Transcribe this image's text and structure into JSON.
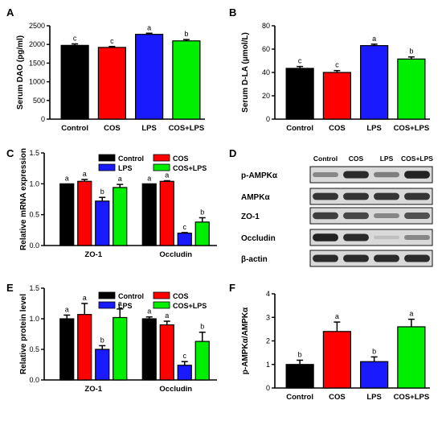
{
  "panels": {
    "A": "A",
    "B": "B",
    "C": "C",
    "D": "D",
    "E": "E",
    "F": "F"
  },
  "colors": {
    "Control": "#000000",
    "COS": "#ff0000",
    "LPS": "#1a1aff",
    "COS+LPS": "#00ee00"
  },
  "chart_data": [
    {
      "panel": "A",
      "type": "bar",
      "ylabel": "Serum DAO (pg/ml)",
      "ylim": [
        0,
        2500
      ],
      "yticks": [
        0,
        500,
        1000,
        1500,
        2000,
        2500
      ],
      "categories": [
        "Control",
        "COS",
        "LPS",
        "COS+LPS"
      ],
      "values": [
        1975,
        1920,
        2270,
        2095
      ],
      "errors": [
        40,
        25,
        30,
        35
      ],
      "letters": [
        "c",
        "c",
        "a",
        "b"
      ]
    },
    {
      "panel": "B",
      "type": "bar",
      "ylabel": "Serum D-LA (μmol/L)",
      "ylim": [
        0,
        80
      ],
      "yticks": [
        0,
        20,
        40,
        60,
        80
      ],
      "categories": [
        "Control",
        "COS",
        "LPS",
        "COS+LPS"
      ],
      "values": [
        43.5,
        40,
        63,
        51.5
      ],
      "errors": [
        1.6,
        1.6,
        1.2,
        1.8
      ],
      "letters": [
        "c",
        "c",
        "a",
        "b"
      ]
    },
    {
      "panel": "C",
      "type": "bar",
      "ylabel": "Relative mRNA expression",
      "ylim": [
        0,
        1.5
      ],
      "yticks": [
        0.0,
        0.5,
        1.0,
        1.5
      ],
      "categories": [
        "ZO-1",
        "Occludin"
      ],
      "series": [
        {
          "name": "Control",
          "values": [
            1.0,
            1.0
          ],
          "errors": [
            0.0,
            0.0
          ],
          "letters": [
            "a",
            "a"
          ]
        },
        {
          "name": "COS",
          "values": [
            1.04,
            1.04
          ],
          "errors": [
            0.03,
            0.01
          ],
          "letters": [
            "a",
            "a"
          ]
        },
        {
          "name": "LPS",
          "values": [
            0.72,
            0.2
          ],
          "errors": [
            0.06,
            0.01
          ],
          "letters": [
            "b",
            "c"
          ]
        },
        {
          "name": "COS+LPS",
          "values": [
            0.94,
            0.38
          ],
          "errors": [
            0.05,
            0.07
          ],
          "letters": [
            "a",
            "b"
          ]
        }
      ]
    },
    {
      "panel": "E",
      "type": "bar",
      "ylabel": "Relative protein level",
      "ylim": [
        0,
        1.5
      ],
      "yticks": [
        0.0,
        0.5,
        1.0,
        1.5
      ],
      "categories": [
        "ZO-1",
        "Occludin"
      ],
      "series": [
        {
          "name": "Control",
          "values": [
            1.0,
            1.0
          ],
          "errors": [
            0.06,
            0.03
          ],
          "letters": [
            "a",
            "a"
          ]
        },
        {
          "name": "COS",
          "values": [
            1.07,
            0.9
          ],
          "errors": [
            0.18,
            0.06
          ],
          "letters": [
            "a",
            "a"
          ]
        },
        {
          "name": "LPS",
          "values": [
            0.5,
            0.24
          ],
          "errors": [
            0.06,
            0.06
          ],
          "letters": [
            "b",
            "c"
          ]
        },
        {
          "name": "COS+LPS",
          "values": [
            1.02,
            0.63
          ],
          "errors": [
            0.14,
            0.15
          ],
          "letters": [
            "a",
            "b"
          ]
        }
      ]
    },
    {
      "panel": "F",
      "type": "bar",
      "ylabel": "p-AMPKα/AMPKα",
      "ylim": [
        0,
        4
      ],
      "yticks": [
        0,
        1,
        2,
        3,
        4
      ],
      "categories": [
        "Control",
        "COS",
        "LPS",
        "COS+LPS"
      ],
      "values": [
        1.0,
        2.4,
        1.12,
        2.6
      ],
      "errors": [
        0.18,
        0.4,
        0.2,
        0.32
      ],
      "letters": [
        "b",
        "a",
        "b",
        "a"
      ]
    }
  ],
  "western_blot": {
    "panel": "D",
    "columns": [
      "Control",
      "COS",
      "LPS",
      "COS+LPS"
    ],
    "rows": [
      {
        "label": "p-AMPKα",
        "intensity": [
          0.35,
          0.85,
          0.4,
          0.9
        ]
      },
      {
        "label": "AMPKα",
        "intensity": [
          0.8,
          0.8,
          0.8,
          0.8
        ]
      },
      {
        "label": "ZO-1",
        "intensity": [
          0.75,
          0.7,
          0.35,
          0.65
        ]
      },
      {
        "label": "Occludin",
        "intensity": [
          0.9,
          0.85,
          0.05,
          0.35
        ]
      },
      {
        "label": "β-actin",
        "intensity": [
          0.85,
          0.85,
          0.85,
          0.85
        ]
      }
    ]
  }
}
